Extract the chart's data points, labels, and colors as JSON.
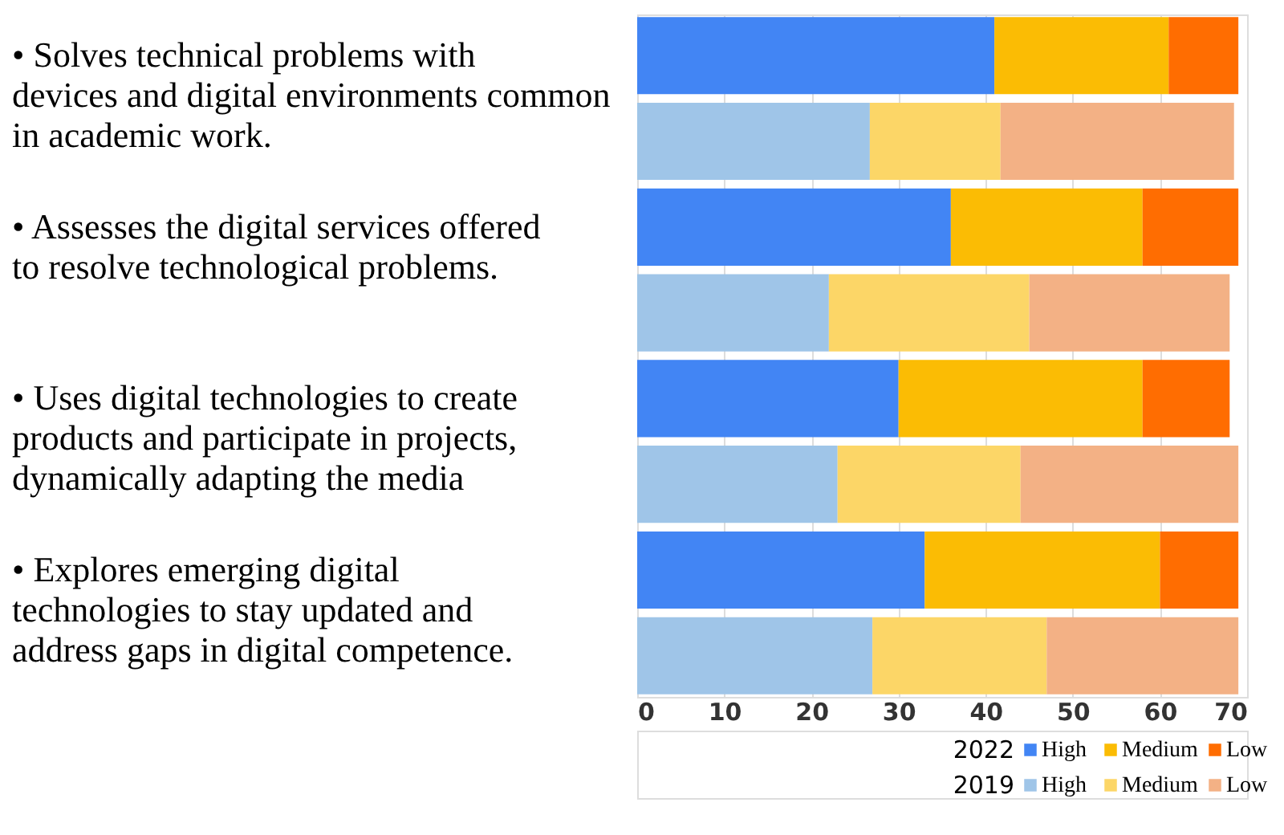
{
  "chart_data": {
    "type": "bar",
    "orientation": "horizontal",
    "stacked": true,
    "categories": [
      "• Solves technical problems with devices and digital environments common in academic work.",
      null,
      "• Assesses the digital services offered to resolve technological problems.",
      null,
      "• Uses digital technologies to create products and participate in projects, dynamically adapting the media",
      null,
      "• Explores emerging digital technologies to stay updated and address gaps in digital competence.",
      null
    ],
    "series": [
      {
        "name": "High",
        "color": "#4285f4",
        "values": [
          41,
          null,
          36,
          null,
          30,
          null,
          33,
          null
        ]
      },
      {
        "name": "Medium",
        "color": "#fbbc04",
        "values": [
          20,
          null,
          22,
          null,
          28,
          null,
          27,
          null
        ]
      },
      {
        "name": "Low",
        "color": "#ff6d01",
        "values": [
          8,
          null,
          11,
          null,
          10,
          null,
          9,
          null
        ]
      },
      {
        "name": "High",
        "color": "#9fc5e8",
        "values": [
          null,
          26.7,
          null,
          22,
          null,
          23,
          null,
          27
        ]
      },
      {
        "name": "Medium",
        "color": "#fcd667",
        "values": [
          null,
          15,
          null,
          23,
          null,
          21,
          null,
          20
        ]
      },
      {
        "name": "Low",
        "color": "#f3b185",
        "values": [
          null,
          26.8,
          null,
          23,
          null,
          25,
          null,
          22
        ]
      }
    ],
    "annotations": [
      "2022",
      "2019"
    ],
    "xlim": [
      0,
      70
    ],
    "xticks": [
      0,
      10,
      20,
      30,
      40,
      50,
      60,
      70
    ],
    "grid": "x",
    "legend": "bottom right"
  }
}
